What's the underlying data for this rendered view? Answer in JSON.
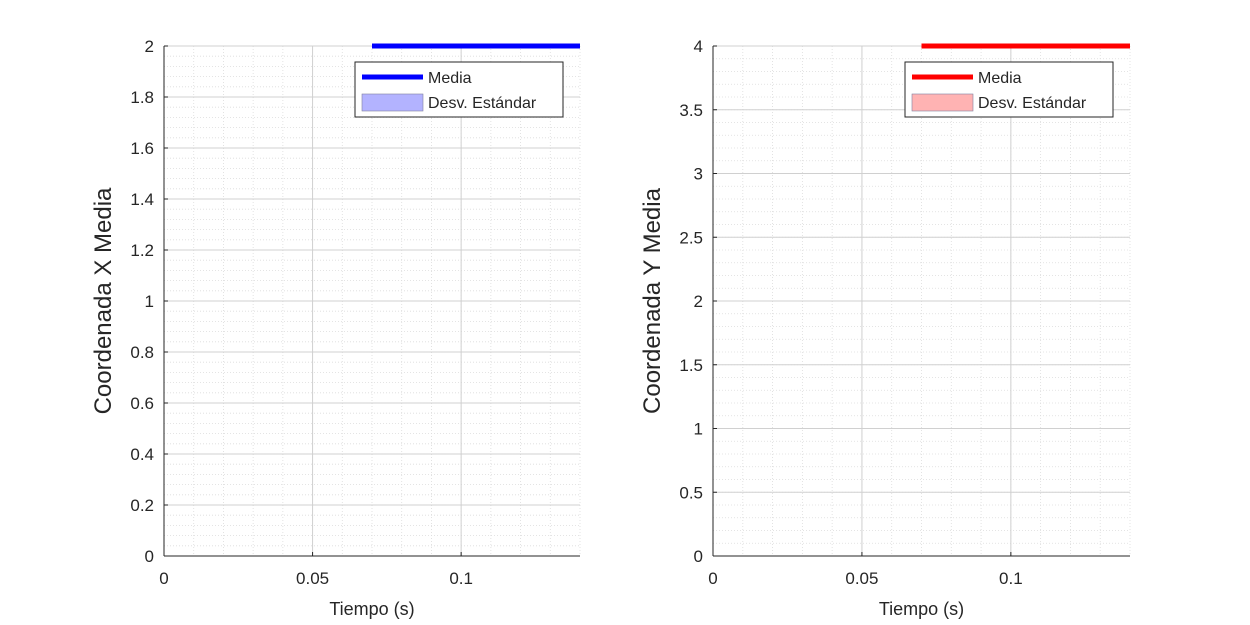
{
  "chart_data": [
    {
      "type": "line",
      "xlabel": "Tiempo (s)",
      "ylabel": "Coordenada X Media",
      "xlim": [
        0,
        0.14
      ],
      "ylim": [
        0,
        2
      ],
      "xticks": [
        0,
        0.05,
        0.1
      ],
      "xtick_labels": [
        "0",
        "0.05",
        "0.1"
      ],
      "yticks": [
        0,
        0.2,
        0.4,
        0.6,
        0.8,
        1,
        1.2,
        1.4,
        1.6,
        1.8,
        2
      ],
      "ytick_labels": [
        "0",
        "0.2",
        "0.4",
        "0.6",
        "0.8",
        "1",
        "1.2",
        "1.4",
        "1.6",
        "1.8",
        "2"
      ],
      "grid": true,
      "minor_grid": true,
      "legend_position": "top-right",
      "series": [
        {
          "name": "Media",
          "kind": "line",
          "color": "#0000ff",
          "x": [
            0.07,
            0.14
          ],
          "y": [
            2,
            2
          ]
        },
        {
          "name": "Desv. Estándar",
          "kind": "band",
          "color": "#b3b3ff",
          "x": [],
          "y": []
        }
      ]
    },
    {
      "type": "line",
      "xlabel": "Tiempo (s)",
      "ylabel": "Coordenada Y Media",
      "xlim": [
        0,
        0.14
      ],
      "ylim": [
        0,
        4
      ],
      "xticks": [
        0,
        0.05,
        0.1
      ],
      "xtick_labels": [
        "0",
        "0.05",
        "0.1"
      ],
      "yticks": [
        0,
        0.5,
        1,
        1.5,
        2,
        2.5,
        3,
        3.5,
        4
      ],
      "ytick_labels": [
        "0",
        "0.5",
        "1",
        "1.5",
        "2",
        "2.5",
        "3",
        "3.5",
        "4"
      ],
      "grid": true,
      "minor_grid": true,
      "legend_position": "top-right",
      "series": [
        {
          "name": "Media",
          "kind": "line",
          "color": "#ff0000",
          "x": [
            0.07,
            0.14
          ],
          "y": [
            4,
            4
          ]
        },
        {
          "name": "Desv. Estándar",
          "kind": "band",
          "color": "#ffb3b3",
          "x": [],
          "y": []
        }
      ]
    }
  ]
}
